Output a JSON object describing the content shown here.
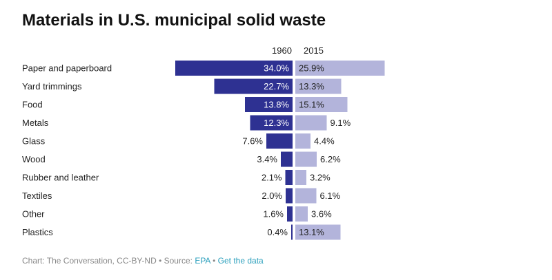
{
  "title": "Materials in U.S. municipal solid waste",
  "colors": {
    "left_bar": "#2e3192",
    "right_bar": "#b3b4db",
    "link": "#2a9fbc",
    "muted": "#888888"
  },
  "chart_data": {
    "type": "bar",
    "orientation": "horizontal-diverging",
    "title": "Materials in U.S. municipal solid waste",
    "unit": "%",
    "categories": [
      "Paper and paperboard",
      "Yard trimmings",
      "Food",
      "Metals",
      "Glass",
      "Wood",
      "Rubber and leather",
      "Textiles",
      "Other",
      "Plastics"
    ],
    "series": [
      {
        "name": "1960",
        "values": [
          34.0,
          22.7,
          13.8,
          12.3,
          7.6,
          3.4,
          2.1,
          2.0,
          1.6,
          0.4
        ],
        "labels": [
          "34.0%",
          "22.7%",
          "13.8%",
          "12.3%",
          "7.6%",
          "3.4%",
          "2.1%",
          "2.0%",
          "1.6%",
          "0.4%"
        ]
      },
      {
        "name": "2015",
        "values": [
          25.9,
          13.3,
          15.1,
          9.1,
          4.4,
          6.2,
          3.2,
          6.1,
          3.6,
          13.1
        ],
        "labels": [
          "25.9%",
          "13.3%",
          "15.1%",
          "9.1%",
          "4.4%",
          "6.2%",
          "3.2%",
          "6.1%",
          "3.6%",
          "13.1%"
        ]
      }
    ],
    "xlim": [
      0,
      34
    ],
    "grid": false,
    "legend": "column headers"
  },
  "footer": {
    "prefix": "Chart: The Conversation, CC-BY-ND • Source: ",
    "source_link": "EPA",
    "separator": " • ",
    "data_link": "Get the data"
  }
}
